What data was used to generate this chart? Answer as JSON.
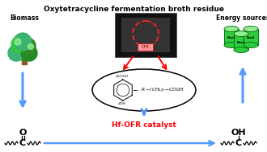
{
  "title": "Oxytetracycline fermentation broth residue",
  "title_fontsize": 6.5,
  "title_fontweight": "bold",
  "bg_color": "#ffffff",
  "biomass_label": "Biomass",
  "energy_label": "Energy sources",
  "catalyst_label": "Hf-OFR catalyst",
  "catalyst_color": "#ff0000",
  "arrow_color": "#5599ff",
  "fig_width": 3.3,
  "fig_height": 1.89,
  "dpi": 100
}
